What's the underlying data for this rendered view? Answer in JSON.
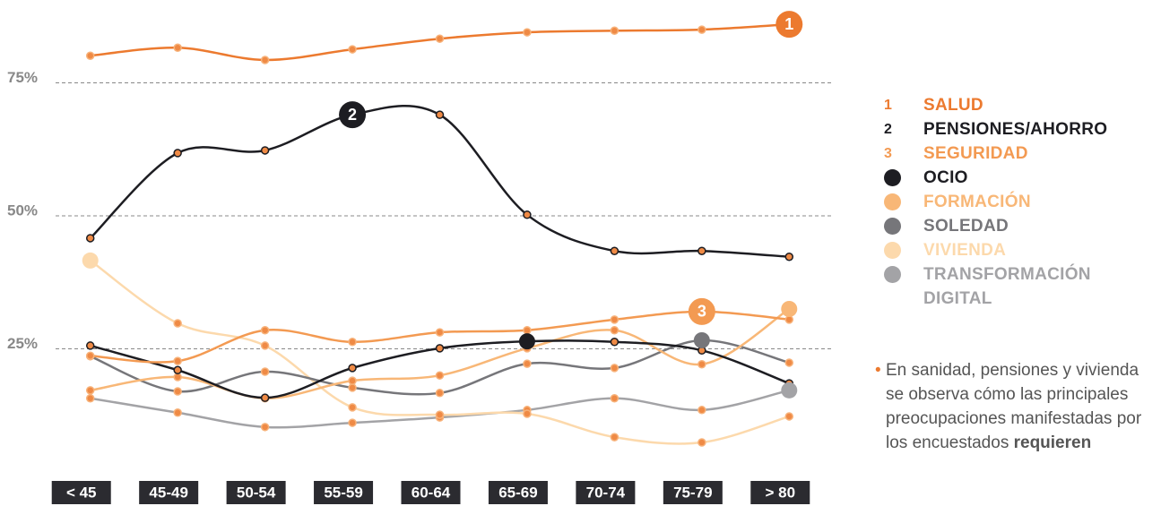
{
  "chart_data": {
    "type": "line",
    "categories": [
      "< 45",
      "45-49",
      "50-54",
      "55-59",
      "60-64",
      "65-69",
      "70-74",
      "75-79",
      "> 80"
    ],
    "ylim": [
      0,
      90
    ],
    "yticks": [
      {
        "value": 25,
        "label": "25%"
      },
      {
        "value": 50,
        "label": "50%"
      },
      {
        "value": 75,
        "label": "75%"
      }
    ],
    "grid": true,
    "series": [
      {
        "name": "SALUD",
        "marker": "1",
        "label_at": 8,
        "color": "#ec7a2f",
        "values": [
          80.1,
          81.6,
          79.3,
          81.3,
          83.3,
          84.5,
          84.8,
          85.0,
          86.0
        ]
      },
      {
        "name": "PENSIONES/AHORRO",
        "marker": "2",
        "label_at": 3,
        "color": "#1d1d22",
        "values": [
          45.8,
          61.8,
          62.3,
          69.0,
          69.0,
          50.2,
          43.4,
          43.4,
          42.3
        ]
      },
      {
        "name": "SEGURIDAD",
        "marker": "3",
        "label_at": 7,
        "color": "#f39a52",
        "values": [
          23.7,
          22.7,
          28.5,
          26.3,
          28.1,
          28.5,
          30.5,
          32.0,
          30.5
        ]
      },
      {
        "name": "OCIO",
        "label_at": 5,
        "color": "#1d1d22",
        "values": [
          25.6,
          21.0,
          15.8,
          21.4,
          25.1,
          26.4,
          26.3,
          24.7,
          18.5
        ]
      },
      {
        "name": "FORMACIÓN",
        "label_at": 8,
        "color": "#f8b777",
        "values": [
          17.2,
          19.7,
          15.7,
          19.0,
          20.0,
          25.1,
          28.5,
          22.1,
          32.5
        ]
      },
      {
        "name": "SOLEDAD",
        "label_at": 7,
        "color": "#76767a",
        "values": [
          23.6,
          17.0,
          20.7,
          17.7,
          16.7,
          22.2,
          21.4,
          26.6,
          22.4
        ]
      },
      {
        "name": "VIVIENDA",
        "label_at": 0,
        "color": "#fcd9ac",
        "values": [
          41.6,
          29.8,
          25.6,
          14.0,
          12.6,
          12.8,
          8.4,
          7.4,
          12.3
        ]
      },
      {
        "name": "TRANSFORMACIÓN DIGITAL",
        "label_at": 8,
        "color": "#a3a3a6",
        "values": [
          15.7,
          13.0,
          10.3,
          11.1,
          12.1,
          13.5,
          15.7,
          13.5,
          17.2
        ]
      }
    ],
    "note": {
      "text": "En sanidad, pensiones y vivienda se observa cómo las principales preocupaciones manifestadas por los encuestados",
      "bold": "requieren"
    }
  }
}
